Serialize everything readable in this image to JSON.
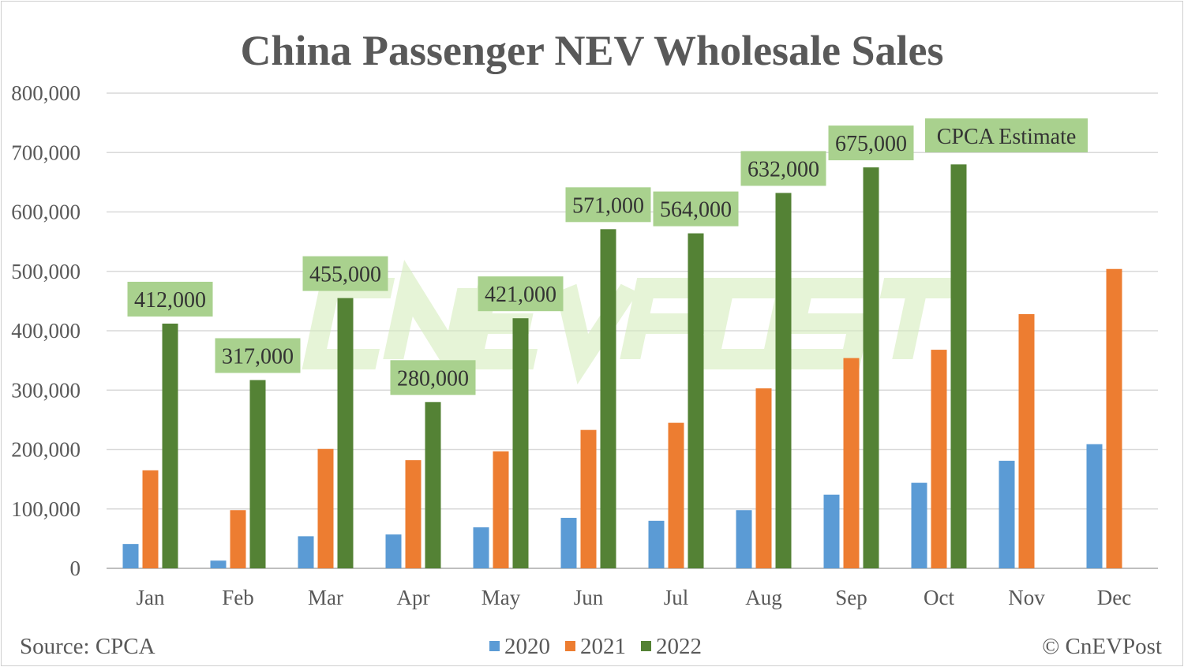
{
  "chart_data": {
    "type": "bar",
    "title": "China Passenger NEV Wholesale Sales",
    "categories": [
      "Jan",
      "Feb",
      "Mar",
      "Apr",
      "May",
      "Jun",
      "Jul",
      "Aug",
      "Sep",
      "Oct",
      "Nov",
      "Dec"
    ],
    "series": [
      {
        "name": "2020",
        "color": "#5B9BD5",
        "values": [
          41000,
          13000,
          54000,
          57000,
          69000,
          85000,
          80000,
          98000,
          124000,
          144000,
          181000,
          209000
        ]
      },
      {
        "name": "2021",
        "color": "#ED7D31",
        "values": [
          165000,
          98000,
          201000,
          182000,
          197000,
          233000,
          245000,
          303000,
          354000,
          368000,
          428000,
          504000
        ]
      },
      {
        "name": "2022",
        "color": "#548235",
        "values": [
          412000,
          317000,
          455000,
          280000,
          421000,
          571000,
          564000,
          632000,
          675000,
          680000,
          null,
          null
        ]
      }
    ],
    "data_labels": [
      "412,000",
      "317,000",
      "455,000",
      "280,000",
      "421,000",
      "571,000",
      "564,000",
      "632,000",
      "675,000",
      null,
      null,
      null
    ],
    "annotation": "CPCA Estimate",
    "label_color": "#A9D18E",
    "ylim": [
      0,
      800000
    ],
    "yticks": [
      "0",
      "100,000",
      "200,000",
      "300,000",
      "400,000",
      "500,000",
      "600,000",
      "700,000",
      "800,000"
    ],
    "grid": true,
    "legend_position": "bottom"
  },
  "source": "Source: CPCA",
  "credit": "© CnEVPost",
  "watermark": "CnEVPost"
}
